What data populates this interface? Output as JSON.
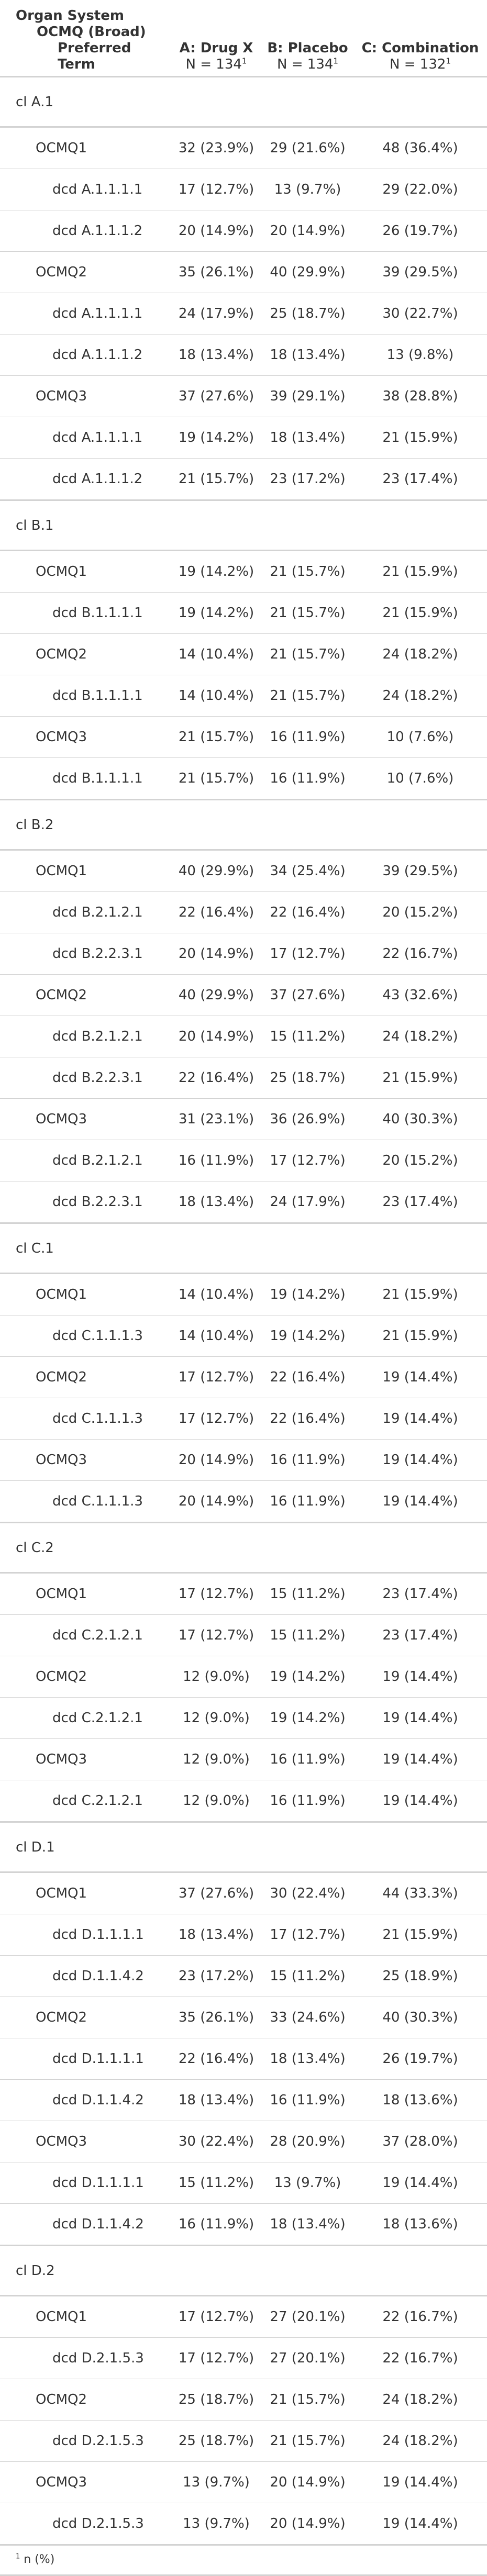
{
  "header": {
    "stub_lines": [
      "Organ System",
      "OCMQ (Broad)",
      "Preferred Term"
    ],
    "arms": [
      {
        "name": "A: Drug X",
        "n": "N = 134",
        "mark": "1"
      },
      {
        "name": "B: Placebo",
        "n": "N = 134",
        "mark": "1"
      },
      {
        "name": "C: Combination",
        "n": "N = 132",
        "mark": "1"
      }
    ]
  },
  "groups": [
    {
      "name": "cl A.1",
      "rows": [
        {
          "level": 1,
          "label": "OCMQ1",
          "values": [
            "32 (23.9%)",
            "29 (21.6%)",
            "48 (36.4%)"
          ]
        },
        {
          "level": 2,
          "label": "dcd A.1.1.1.1",
          "values": [
            "17 (12.7%)",
            "13 (9.7%)",
            "29 (22.0%)"
          ]
        },
        {
          "level": 2,
          "label": "dcd A.1.1.1.2",
          "values": [
            "20 (14.9%)",
            "20 (14.9%)",
            "26 (19.7%)"
          ]
        },
        {
          "level": 1,
          "label": "OCMQ2",
          "values": [
            "35 (26.1%)",
            "40 (29.9%)",
            "39 (29.5%)"
          ]
        },
        {
          "level": 2,
          "label": "dcd A.1.1.1.1",
          "values": [
            "24 (17.9%)",
            "25 (18.7%)",
            "30 (22.7%)"
          ]
        },
        {
          "level": 2,
          "label": "dcd A.1.1.1.2",
          "values": [
            "18 (13.4%)",
            "18 (13.4%)",
            "13 (9.8%)"
          ]
        },
        {
          "level": 1,
          "label": "OCMQ3",
          "values": [
            "37 (27.6%)",
            "39 (29.1%)",
            "38 (28.8%)"
          ]
        },
        {
          "level": 2,
          "label": "dcd A.1.1.1.1",
          "values": [
            "19 (14.2%)",
            "18 (13.4%)",
            "21 (15.9%)"
          ]
        },
        {
          "level": 2,
          "label": "dcd A.1.1.1.2",
          "values": [
            "21 (15.7%)",
            "23 (17.2%)",
            "23 (17.4%)"
          ]
        }
      ]
    },
    {
      "name": "cl B.1",
      "rows": [
        {
          "level": 1,
          "label": "OCMQ1",
          "values": [
            "19 (14.2%)",
            "21 (15.7%)",
            "21 (15.9%)"
          ]
        },
        {
          "level": 2,
          "label": "dcd B.1.1.1.1",
          "values": [
            "19 (14.2%)",
            "21 (15.7%)",
            "21 (15.9%)"
          ]
        },
        {
          "level": 1,
          "label": "OCMQ2",
          "values": [
            "14 (10.4%)",
            "21 (15.7%)",
            "24 (18.2%)"
          ]
        },
        {
          "level": 2,
          "label": "dcd B.1.1.1.1",
          "values": [
            "14 (10.4%)",
            "21 (15.7%)",
            "24 (18.2%)"
          ]
        },
        {
          "level": 1,
          "label": "OCMQ3",
          "values": [
            "21 (15.7%)",
            "16 (11.9%)",
            "10 (7.6%)"
          ]
        },
        {
          "level": 2,
          "label": "dcd B.1.1.1.1",
          "values": [
            "21 (15.7%)",
            "16 (11.9%)",
            "10 (7.6%)"
          ]
        }
      ]
    },
    {
      "name": "cl B.2",
      "rows": [
        {
          "level": 1,
          "label": "OCMQ1",
          "values": [
            "40 (29.9%)",
            "34 (25.4%)",
            "39 (29.5%)"
          ]
        },
        {
          "level": 2,
          "label": "dcd B.2.1.2.1",
          "values": [
            "22 (16.4%)",
            "22 (16.4%)",
            "20 (15.2%)"
          ]
        },
        {
          "level": 2,
          "label": "dcd B.2.2.3.1",
          "values": [
            "20 (14.9%)",
            "17 (12.7%)",
            "22 (16.7%)"
          ]
        },
        {
          "level": 1,
          "label": "OCMQ2",
          "values": [
            "40 (29.9%)",
            "37 (27.6%)",
            "43 (32.6%)"
          ]
        },
        {
          "level": 2,
          "label": "dcd B.2.1.2.1",
          "values": [
            "20 (14.9%)",
            "15 (11.2%)",
            "24 (18.2%)"
          ]
        },
        {
          "level": 2,
          "label": "dcd B.2.2.3.1",
          "values": [
            "22 (16.4%)",
            "25 (18.7%)",
            "21 (15.9%)"
          ]
        },
        {
          "level": 1,
          "label": "OCMQ3",
          "values": [
            "31 (23.1%)",
            "36 (26.9%)",
            "40 (30.3%)"
          ]
        },
        {
          "level": 2,
          "label": "dcd B.2.1.2.1",
          "values": [
            "16 (11.9%)",
            "17 (12.7%)",
            "20 (15.2%)"
          ]
        },
        {
          "level": 2,
          "label": "dcd B.2.2.3.1",
          "values": [
            "18 (13.4%)",
            "24 (17.9%)",
            "23 (17.4%)"
          ]
        }
      ]
    },
    {
      "name": "cl C.1",
      "rows": [
        {
          "level": 1,
          "label": "OCMQ1",
          "values": [
            "14 (10.4%)",
            "19 (14.2%)",
            "21 (15.9%)"
          ]
        },
        {
          "level": 2,
          "label": "dcd C.1.1.1.3",
          "values": [
            "14 (10.4%)",
            "19 (14.2%)",
            "21 (15.9%)"
          ]
        },
        {
          "level": 1,
          "label": "OCMQ2",
          "values": [
            "17 (12.7%)",
            "22 (16.4%)",
            "19 (14.4%)"
          ]
        },
        {
          "level": 2,
          "label": "dcd C.1.1.1.3",
          "values": [
            "17 (12.7%)",
            "22 (16.4%)",
            "19 (14.4%)"
          ]
        },
        {
          "level": 1,
          "label": "OCMQ3",
          "values": [
            "20 (14.9%)",
            "16 (11.9%)",
            "19 (14.4%)"
          ]
        },
        {
          "level": 2,
          "label": "dcd C.1.1.1.3",
          "values": [
            "20 (14.9%)",
            "16 (11.9%)",
            "19 (14.4%)"
          ]
        }
      ]
    },
    {
      "name": "cl C.2",
      "rows": [
        {
          "level": 1,
          "label": "OCMQ1",
          "values": [
            "17 (12.7%)",
            "15 (11.2%)",
            "23 (17.4%)"
          ]
        },
        {
          "level": 2,
          "label": "dcd C.2.1.2.1",
          "values": [
            "17 (12.7%)",
            "15 (11.2%)",
            "23 (17.4%)"
          ]
        },
        {
          "level": 1,
          "label": "OCMQ2",
          "values": [
            "12 (9.0%)",
            "19 (14.2%)",
            "19 (14.4%)"
          ]
        },
        {
          "level": 2,
          "label": "dcd C.2.1.2.1",
          "values": [
            "12 (9.0%)",
            "19 (14.2%)",
            "19 (14.4%)"
          ]
        },
        {
          "level": 1,
          "label": "OCMQ3",
          "values": [
            "12 (9.0%)",
            "16 (11.9%)",
            "19 (14.4%)"
          ]
        },
        {
          "level": 2,
          "label": "dcd C.2.1.2.1",
          "values": [
            "12 (9.0%)",
            "16 (11.9%)",
            "19 (14.4%)"
          ]
        }
      ]
    },
    {
      "name": "cl D.1",
      "rows": [
        {
          "level": 1,
          "label": "OCMQ1",
          "values": [
            "37 (27.6%)",
            "30 (22.4%)",
            "44 (33.3%)"
          ]
        },
        {
          "level": 2,
          "label": "dcd D.1.1.1.1",
          "values": [
            "18 (13.4%)",
            "17 (12.7%)",
            "21 (15.9%)"
          ]
        },
        {
          "level": 2,
          "label": "dcd D.1.1.4.2",
          "values": [
            "23 (17.2%)",
            "15 (11.2%)",
            "25 (18.9%)"
          ]
        },
        {
          "level": 1,
          "label": "OCMQ2",
          "values": [
            "35 (26.1%)",
            "33 (24.6%)",
            "40 (30.3%)"
          ]
        },
        {
          "level": 2,
          "label": "dcd D.1.1.1.1",
          "values": [
            "22 (16.4%)",
            "18 (13.4%)",
            "26 (19.7%)"
          ]
        },
        {
          "level": 2,
          "label": "dcd D.1.1.4.2",
          "values": [
            "18 (13.4%)",
            "16 (11.9%)",
            "18 (13.6%)"
          ]
        },
        {
          "level": 1,
          "label": "OCMQ3",
          "values": [
            "30 (22.4%)",
            "28 (20.9%)",
            "37 (28.0%)"
          ]
        },
        {
          "level": 2,
          "label": "dcd D.1.1.1.1",
          "values": [
            "15 (11.2%)",
            "13 (9.7%)",
            "19 (14.4%)"
          ]
        },
        {
          "level": 2,
          "label": "dcd D.1.1.4.2",
          "values": [
            "16 (11.9%)",
            "18 (13.4%)",
            "18 (13.6%)"
          ]
        }
      ]
    },
    {
      "name": "cl D.2",
      "rows": [
        {
          "level": 1,
          "label": "OCMQ1",
          "values": [
            "17 (12.7%)",
            "27 (20.1%)",
            "22 (16.7%)"
          ]
        },
        {
          "level": 2,
          "label": "dcd D.2.1.5.3",
          "values": [
            "17 (12.7%)",
            "27 (20.1%)",
            "22 (16.7%)"
          ]
        },
        {
          "level": 1,
          "label": "OCMQ2",
          "values": [
            "25 (18.7%)",
            "21 (15.7%)",
            "24 (18.2%)"
          ]
        },
        {
          "level": 2,
          "label": "dcd D.2.1.5.3",
          "values": [
            "25 (18.7%)",
            "21 (15.7%)",
            "24 (18.2%)"
          ]
        },
        {
          "level": 1,
          "label": "OCMQ3",
          "values": [
            "13 (9.7%)",
            "20 (14.9%)",
            "19 (14.4%)"
          ]
        },
        {
          "level": 2,
          "label": "dcd D.2.1.5.3",
          "values": [
            "13 (9.7%)",
            "20 (14.9%)",
            "19 (14.4%)"
          ]
        }
      ]
    }
  ],
  "footnote": {
    "mark": "1",
    "text": "n (%)"
  }
}
